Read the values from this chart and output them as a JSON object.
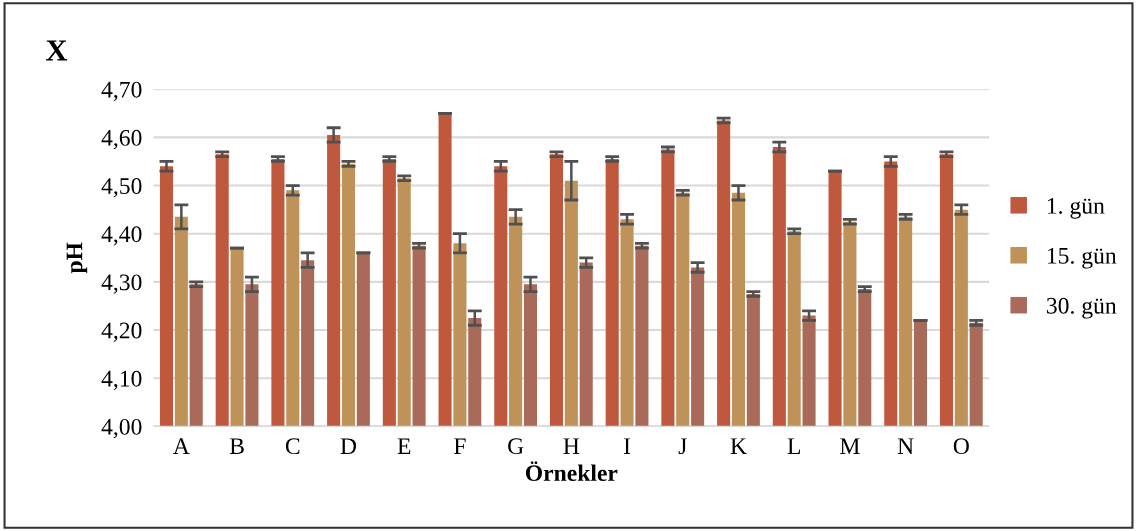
{
  "chart_data": {
    "type": "bar",
    "title": "X",
    "xlabel": "Örnekler",
    "ylabel": "pH",
    "categories": [
      "A",
      "B",
      "C",
      "D",
      "E",
      "F",
      "G",
      "H",
      "I",
      "J",
      "K",
      "L",
      "M",
      "N",
      "O"
    ],
    "series": [
      {
        "name": "1. gün",
        "color": "#c0583e",
        "values": [
          4.54,
          4.565,
          4.555,
          4.605,
          4.555,
          4.65,
          4.54,
          4.565,
          4.555,
          4.575,
          4.635,
          4.58,
          4.53,
          4.55,
          4.565
        ],
        "errors": [
          0.01,
          0.005,
          0.005,
          0.015,
          0.005,
          0,
          0.01,
          0.005,
          0.005,
          0.005,
          0.005,
          0.01,
          0,
          0.01,
          0.005
        ]
      },
      {
        "name": "15. gün",
        "color": "#be9259",
        "values": [
          4.435,
          4.37,
          4.49,
          4.545,
          4.515,
          4.38,
          4.435,
          4.51,
          4.43,
          4.485,
          4.485,
          4.405,
          4.425,
          4.435,
          4.45
        ],
        "errors": [
          0.025,
          0,
          0.01,
          0.005,
          0.005,
          0.02,
          0.015,
          0.04,
          0.01,
          0.005,
          0.015,
          0.005,
          0.005,
          0.005,
          0.01
        ]
      },
      {
        "name": "30. gün",
        "color": "#aa6a5a",
        "values": [
          4.295,
          4.295,
          4.345,
          4.36,
          4.375,
          4.225,
          4.295,
          4.34,
          4.375,
          4.33,
          4.275,
          4.23,
          4.285,
          4.22,
          4.215
        ],
        "errors": [
          0.005,
          0.015,
          0.015,
          0,
          0.005,
          0.015,
          0.015,
          0.01,
          0.005,
          0.01,
          0.005,
          0.01,
          0.005,
          0,
          0.005
        ]
      }
    ],
    "ylim": [
      4.0,
      4.7
    ],
    "yticks": [
      {
        "value": 4.0,
        "label": "4,00"
      },
      {
        "value": 4.1,
        "label": "4,10"
      },
      {
        "value": 4.2,
        "label": "4,20"
      },
      {
        "value": 4.3,
        "label": "4,30"
      },
      {
        "value": 4.4,
        "label": "4,40"
      },
      {
        "value": 4.5,
        "label": "4,50"
      },
      {
        "value": 4.6,
        "label": "4,60"
      },
      {
        "value": 4.7,
        "label": "4,70"
      }
    ],
    "grid": "y",
    "legend": "right"
  }
}
